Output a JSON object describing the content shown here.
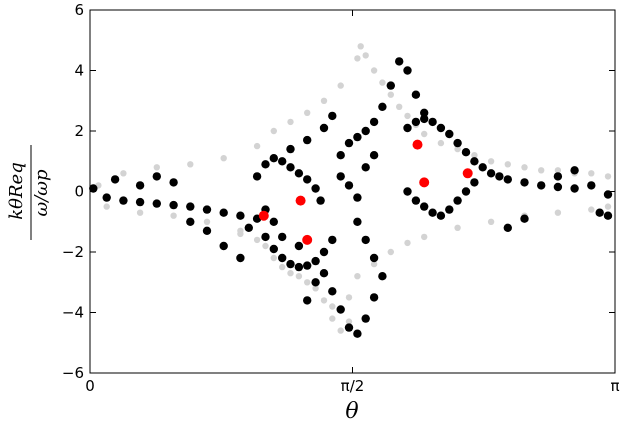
{
  "chart_data": {
    "type": "scatter",
    "title": "",
    "xlabel": "θ",
    "ylabel_numerator": "kθReq",
    "ylabel_denominator": "ω/ωp",
    "xlim": [
      0,
      3.14159
    ],
    "ylim": [
      -6,
      6
    ],
    "x_ticks": [
      {
        "value": 0,
        "label": "0"
      },
      {
        "value": 1.5708,
        "label": "π/2"
      },
      {
        "value": 3.14159,
        "label": "π"
      }
    ],
    "y_ticks": [
      {
        "value": -6,
        "label": "−6"
      },
      {
        "value": -4,
        "label": "−4"
      },
      {
        "value": -2,
        "label": "−2"
      },
      {
        "value": 0,
        "label": "0"
      },
      {
        "value": 2,
        "label": "2"
      },
      {
        "value": 4,
        "label": "4"
      },
      {
        "value": 6,
        "label": "6"
      }
    ],
    "grid": false,
    "legend": "none",
    "series": [
      {
        "color": "#d3d3d3",
        "description_points": "dense background sea of trajectories",
        "points": [
          [
            0.05,
            0.2
          ],
          [
            0.1,
            -0.5
          ],
          [
            0.2,
            0.6
          ],
          [
            0.3,
            -0.7
          ],
          [
            0.4,
            0.8
          ],
          [
            0.5,
            -0.8
          ],
          [
            0.6,
            0.9
          ],
          [
            0.7,
            -1.0
          ],
          [
            0.8,
            1.1
          ],
          [
            0.9,
            -1.3
          ],
          [
            1.0,
            1.5
          ],
          [
            1.05,
            -1.8
          ],
          [
            1.1,
            2.0
          ],
          [
            1.15,
            -2.5
          ],
          [
            1.2,
            2.3
          ],
          [
            1.25,
            -2.8
          ],
          [
            1.3,
            2.6
          ],
          [
            1.35,
            -3.2
          ],
          [
            1.4,
            3.0
          ],
          [
            1.45,
            -3.8
          ],
          [
            1.5,
            3.5
          ],
          [
            1.55,
            -4.3
          ],
          [
            1.6,
            4.4
          ],
          [
            1.62,
            4.8
          ],
          [
            1.65,
            4.5
          ],
          [
            1.7,
            4.0
          ],
          [
            1.75,
            3.6
          ],
          [
            1.8,
            3.2
          ],
          [
            1.85,
            2.8
          ],
          [
            1.9,
            2.5
          ],
          [
            1.95,
            2.2
          ],
          [
            2.0,
            1.9
          ],
          [
            2.1,
            1.6
          ],
          [
            2.2,
            1.4
          ],
          [
            2.3,
            1.2
          ],
          [
            2.4,
            1.0
          ],
          [
            2.5,
            0.9
          ],
          [
            2.6,
            0.8
          ],
          [
            2.7,
            0.7
          ],
          [
            2.8,
            0.7
          ],
          [
            2.9,
            0.6
          ],
          [
            3.0,
            0.6
          ],
          [
            3.1,
            0.5
          ],
          [
            1.5,
            -4.6
          ],
          [
            1.45,
            -4.2
          ],
          [
            1.4,
            -3.6
          ],
          [
            1.3,
            -3.0
          ],
          [
            1.2,
            -2.7
          ],
          [
            1.1,
            -2.2
          ],
          [
            1.0,
            -1.6
          ],
          [
            0.9,
            -1.4
          ],
          [
            2.0,
            -1.5
          ],
          [
            2.2,
            -1.2
          ],
          [
            2.4,
            -1.0
          ],
          [
            2.6,
            -0.8
          ],
          [
            2.8,
            -0.7
          ],
          [
            3.0,
            -0.6
          ],
          [
            3.1,
            -0.5
          ],
          [
            1.8,
            -2.0
          ],
          [
            1.9,
            -1.7
          ],
          [
            1.7,
            -2.4
          ],
          [
            1.6,
            -2.8
          ],
          [
            1.55,
            -3.5
          ]
        ]
      },
      {
        "color": "#000000",
        "description_points": "chaotic / separatrix trajectories",
        "points": [
          [
            0.02,
            0.1
          ],
          [
            0.1,
            -0.2
          ],
          [
            0.2,
            -0.3
          ],
          [
            0.3,
            -0.35
          ],
          [
            0.4,
            -0.4
          ],
          [
            0.5,
            -0.45
          ],
          [
            0.6,
            -0.5
          ],
          [
            0.7,
            -0.6
          ],
          [
            0.8,
            -0.7
          ],
          [
            0.9,
            -0.8
          ],
          [
            0.95,
            -1.2
          ],
          [
            1.0,
            -0.9
          ],
          [
            1.05,
            -1.5
          ],
          [
            1.1,
            -1.9
          ],
          [
            1.15,
            -2.2
          ],
          [
            1.2,
            -2.4
          ],
          [
            1.25,
            -2.5
          ],
          [
            1.3,
            -2.45
          ],
          [
            1.35,
            -2.3
          ],
          [
            1.4,
            -2.0
          ],
          [
            1.45,
            -1.6
          ],
          [
            1.0,
            0.5
          ],
          [
            1.05,
            0.9
          ],
          [
            1.1,
            1.1
          ],
          [
            1.15,
            1.0
          ],
          [
            1.2,
            0.8
          ],
          [
            1.25,
            0.6
          ],
          [
            1.3,
            0.4
          ],
          [
            1.35,
            0.1
          ],
          [
            1.38,
            -0.3
          ],
          [
            1.25,
            -1.8
          ],
          [
            1.15,
            -1.5
          ],
          [
            1.1,
            -1.0
          ],
          [
            1.05,
            -0.6
          ],
          [
            1.5,
            1.2
          ],
          [
            1.55,
            1.6
          ],
          [
            1.6,
            1.8
          ],
          [
            1.65,
            2.0
          ],
          [
            1.7,
            2.3
          ],
          [
            1.75,
            2.8
          ],
          [
            1.8,
            3.5
          ],
          [
            1.85,
            4.3
          ],
          [
            1.9,
            4.0
          ],
          [
            1.95,
            3.2
          ],
          [
            2.0,
            2.6
          ],
          [
            1.9,
            2.1
          ],
          [
            1.95,
            2.3
          ],
          [
            2.0,
            2.4
          ],
          [
            2.05,
            2.3
          ],
          [
            2.1,
            2.1
          ],
          [
            2.15,
            1.9
          ],
          [
            2.2,
            1.6
          ],
          [
            2.25,
            1.3
          ],
          [
            2.3,
            1.0
          ],
          [
            2.35,
            0.8
          ],
          [
            2.4,
            0.6
          ],
          [
            2.45,
            0.5
          ],
          [
            2.5,
            0.4
          ],
          [
            2.6,
            0.3
          ],
          [
            2.7,
            0.2
          ],
          [
            2.8,
            0.15
          ],
          [
            2.9,
            0.1
          ],
          [
            3.0,
            0.2
          ],
          [
            3.1,
            -0.1
          ],
          [
            1.9,
            0.0
          ],
          [
            1.95,
            -0.3
          ],
          [
            2.0,
            -0.5
          ],
          [
            2.05,
            -0.7
          ],
          [
            2.1,
            -0.8
          ],
          [
            2.15,
            -0.6
          ],
          [
            2.2,
            -0.3
          ],
          [
            2.25,
            0.0
          ],
          [
            2.3,
            0.3
          ],
          [
            1.6,
            -1.0
          ],
          [
            1.65,
            -1.6
          ],
          [
            1.7,
            -2.2
          ],
          [
            1.75,
            -2.8
          ],
          [
            1.7,
            -3.5
          ],
          [
            1.65,
            -4.2
          ],
          [
            1.6,
            -4.7
          ],
          [
            1.55,
            -4.5
          ],
          [
            1.5,
            -3.9
          ],
          [
            1.45,
            -3.3
          ],
          [
            1.4,
            -2.7
          ],
          [
            1.35,
            -3.0
          ],
          [
            1.3,
            -3.6
          ],
          [
            0.9,
            -2.2
          ],
          [
            0.8,
            -1.8
          ],
          [
            0.7,
            -1.3
          ],
          [
            0.6,
            -1.0
          ],
          [
            1.5,
            0.5
          ],
          [
            1.55,
            0.2
          ],
          [
            1.6,
            -0.2
          ],
          [
            1.65,
            0.8
          ],
          [
            1.7,
            1.2
          ],
          [
            2.8,
            0.5
          ],
          [
            2.9,
            0.7
          ],
          [
            3.05,
            -0.7
          ],
          [
            3.1,
            -0.8
          ],
          [
            2.6,
            -0.9
          ],
          [
            2.5,
            -1.2
          ],
          [
            0.4,
            0.5
          ],
          [
            0.5,
            0.3
          ],
          [
            0.3,
            0.2
          ],
          [
            0.15,
            0.4
          ],
          [
            1.2,
            1.4
          ],
          [
            1.3,
            1.7
          ],
          [
            1.4,
            2.1
          ],
          [
            1.45,
            2.5
          ]
        ]
      },
      {
        "color": "#ff0000",
        "description_points": "periodic orbit points",
        "points": [
          [
            1.04,
            -0.8
          ],
          [
            1.26,
            -0.3
          ],
          [
            1.3,
            -1.6
          ],
          [
            1.96,
            1.55
          ],
          [
            2.0,
            0.3
          ],
          [
            2.26,
            0.6
          ]
        ]
      }
    ]
  }
}
